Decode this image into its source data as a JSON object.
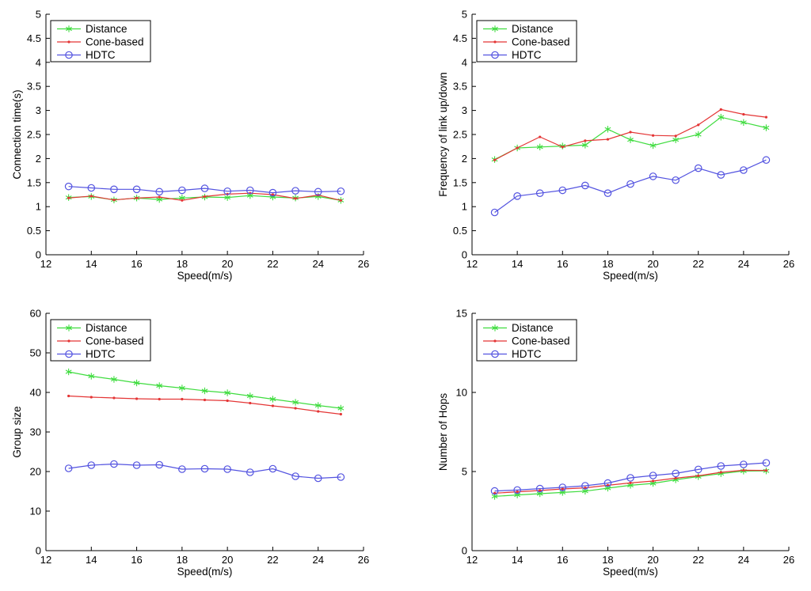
{
  "figure": {
    "background": "#ffffff",
    "axis_color": "#000000",
    "legend": {
      "border_color": "#000000",
      "background": "#ffffff",
      "entries": [
        "Distance",
        "Cone-based",
        "HDTC"
      ]
    },
    "series_styles": [
      {
        "name": "Distance",
        "color": "#3fdc3f",
        "marker": "asterisk"
      },
      {
        "name": "Cone-based",
        "color": "#e43535",
        "marker": "dot"
      },
      {
        "name": "HDTC",
        "color": "#5353e0",
        "marker": "circle"
      }
    ]
  },
  "chart_data": [
    {
      "type": "line",
      "position": "top-left",
      "title": "",
      "xlabel": "Speed(m/s)",
      "ylabel": "Connection time(s)",
      "xlim": [
        12,
        26
      ],
      "ylim": [
        0,
        5
      ],
      "xticks": [
        12,
        14,
        16,
        18,
        20,
        22,
        24,
        26
      ],
      "yticks": [
        0,
        0.5,
        1,
        1.5,
        2,
        2.5,
        3,
        3.5,
        4,
        4.5,
        5
      ],
      "grid": false,
      "legend_position": "top-left-inside",
      "x": [
        13,
        14,
        15,
        16,
        17,
        18,
        19,
        20,
        21,
        22,
        23,
        24,
        25
      ],
      "series": [
        {
          "name": "Distance",
          "color": "#3fdc3f",
          "marker": "asterisk",
          "values": [
            1.19,
            1.21,
            1.14,
            1.18,
            1.15,
            1.18,
            1.2,
            1.19,
            1.23,
            1.2,
            1.18,
            1.21,
            1.13
          ]
        },
        {
          "name": "Cone-based",
          "color": "#e43535",
          "marker": "dot",
          "values": [
            1.18,
            1.22,
            1.14,
            1.18,
            1.2,
            1.13,
            1.21,
            1.26,
            1.28,
            1.25,
            1.17,
            1.24,
            1.13
          ]
        },
        {
          "name": "HDTC",
          "color": "#5353e0",
          "marker": "circle",
          "values": [
            1.42,
            1.39,
            1.36,
            1.36,
            1.31,
            1.34,
            1.38,
            1.32,
            1.34,
            1.29,
            1.33,
            1.31,
            1.32
          ]
        }
      ]
    },
    {
      "type": "line",
      "position": "top-right",
      "title": "",
      "xlabel": "Speed(m/s)",
      "ylabel": "Frequency of link up/down",
      "xlim": [
        12,
        26
      ],
      "ylim": [
        0,
        5
      ],
      "xticks": [
        12,
        14,
        16,
        18,
        20,
        22,
        24,
        26
      ],
      "yticks": [
        0,
        0.5,
        1,
        1.5,
        2,
        2.5,
        3,
        3.5,
        4,
        4.5,
        5
      ],
      "grid": false,
      "legend_position": "top-left-inside",
      "x": [
        13,
        14,
        15,
        16,
        17,
        18,
        19,
        20,
        21,
        22,
        23,
        24,
        25
      ],
      "series": [
        {
          "name": "Distance",
          "color": "#3fdc3f",
          "marker": "asterisk",
          "values": [
            1.98,
            2.22,
            2.24,
            2.26,
            2.28,
            2.61,
            2.39,
            2.27,
            2.39,
            2.5,
            2.86,
            2.75,
            2.64
          ]
        },
        {
          "name": "Cone-based",
          "color": "#e43535",
          "marker": "dot",
          "values": [
            1.97,
            2.22,
            2.45,
            2.24,
            2.37,
            2.4,
            2.55,
            2.48,
            2.47,
            2.7,
            3.02,
            2.92,
            2.86
          ]
        },
        {
          "name": "HDTC",
          "color": "#5353e0",
          "marker": "circle",
          "values": [
            0.88,
            1.22,
            1.28,
            1.34,
            1.44,
            1.28,
            1.47,
            1.63,
            1.55,
            1.8,
            1.66,
            1.76,
            1.97
          ]
        }
      ]
    },
    {
      "type": "line",
      "position": "bottom-left",
      "title": "",
      "xlabel": "Speed(m/s)",
      "ylabel": "Group size",
      "xlim": [
        12,
        26
      ],
      "ylim": [
        0,
        60
      ],
      "xticks": [
        12,
        14,
        16,
        18,
        20,
        22,
        24,
        26
      ],
      "yticks": [
        0,
        10,
        20,
        30,
        40,
        50,
        60
      ],
      "grid": false,
      "legend_position": "top-left-inside",
      "x": [
        13,
        14,
        15,
        16,
        17,
        18,
        19,
        20,
        21,
        22,
        23,
        24,
        25
      ],
      "series": [
        {
          "name": "Distance",
          "color": "#3fdc3f",
          "marker": "asterisk",
          "values": [
            45.2,
            44.1,
            43.3,
            42.4,
            41.7,
            41.1,
            40.4,
            39.9,
            39.1,
            38.3,
            37.5,
            36.7,
            36.0
          ]
        },
        {
          "name": "Cone-based",
          "color": "#e43535",
          "marker": "dot",
          "values": [
            39.1,
            38.8,
            38.6,
            38.4,
            38.3,
            38.3,
            38.1,
            37.9,
            37.3,
            36.6,
            36.0,
            35.2,
            34.5
          ]
        },
        {
          "name": "HDTC",
          "color": "#5353e0",
          "marker": "circle",
          "values": [
            20.8,
            21.6,
            21.9,
            21.6,
            21.7,
            20.6,
            20.7,
            20.6,
            19.8,
            20.7,
            18.8,
            18.3,
            18.6
          ]
        }
      ]
    },
    {
      "type": "line",
      "position": "bottom-right",
      "title": "",
      "xlabel": "Speed(m/s)",
      "ylabel": "Number of Hops",
      "xlim": [
        12,
        26
      ],
      "ylim": [
        0,
        15
      ],
      "xticks": [
        12,
        14,
        16,
        18,
        20,
        22,
        24,
        26
      ],
      "yticks": [
        0,
        5,
        10,
        15
      ],
      "grid": false,
      "legend_position": "top-left-inside",
      "x": [
        13,
        14,
        15,
        16,
        17,
        18,
        19,
        20,
        21,
        22,
        23,
        24,
        25
      ],
      "series": [
        {
          "name": "Distance",
          "color": "#3fdc3f",
          "marker": "asterisk",
          "values": [
            3.43,
            3.52,
            3.6,
            3.68,
            3.76,
            3.95,
            4.13,
            4.25,
            4.48,
            4.68,
            4.87,
            5.03,
            5.04
          ]
        },
        {
          "name": "Cone-based",
          "color": "#e43535",
          "marker": "dot",
          "values": [
            3.63,
            3.72,
            3.8,
            3.9,
            3.97,
            4.13,
            4.28,
            4.4,
            4.58,
            4.73,
            4.95,
            5.08,
            5.07
          ]
        },
        {
          "name": "HDTC",
          "color": "#5353e0",
          "marker": "circle",
          "values": [
            3.77,
            3.83,
            3.92,
            4.0,
            4.1,
            4.27,
            4.6,
            4.75,
            4.88,
            5.13,
            5.35,
            5.45,
            5.55
          ]
        }
      ]
    }
  ]
}
